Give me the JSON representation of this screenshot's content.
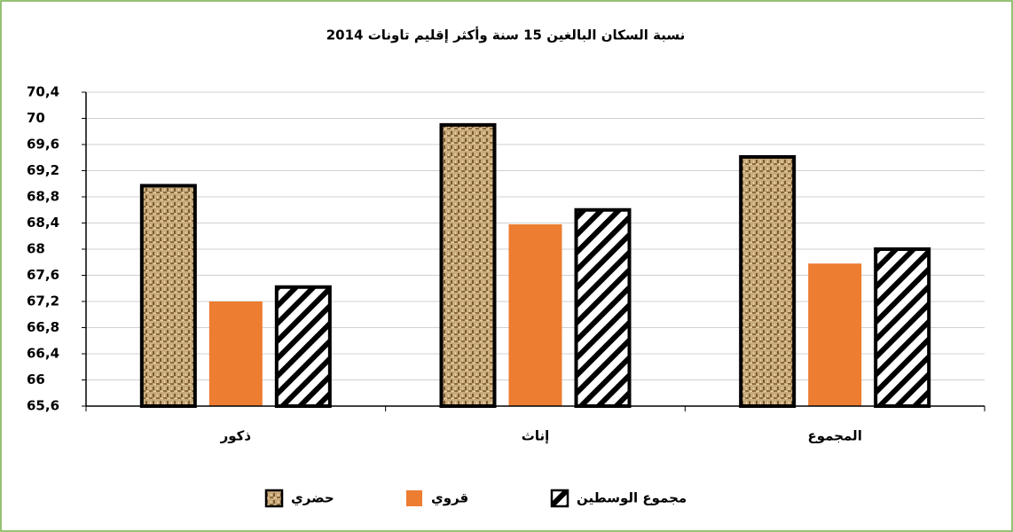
{
  "chart_data": {
    "type": "bar",
    "title": "نسبة السكان البالغين 15 سنة وأكثر إقليم تاونات 2014",
    "categories": [
      "ذكور",
      "إناث",
      "المجموع"
    ],
    "series": [
      {
        "name": "حضري",
        "color": "#c9ab7c",
        "pattern": "texture",
        "values": [
          68.97,
          69.9,
          69.41
        ]
      },
      {
        "name": "قروي",
        "color": "#ed7d31",
        "pattern": "solid",
        "values": [
          67.2,
          68.38,
          67.78
        ]
      },
      {
        "name": "مجموع الوسطين",
        "color": "#000000",
        "pattern": "hatch",
        "values": [
          67.42,
          68.6,
          68.0
        ]
      }
    ],
    "ylim": [
      65.6,
      70.4
    ],
    "yticks": [
      {
        "value": 65.6,
        "label": "65,6"
      },
      66,
      {
        "value": 66.4,
        "label": "66,4"
      },
      {
        "value": 66.8,
        "label": "66,8"
      },
      {
        "value": 67.2,
        "label": "67,2"
      },
      {
        "value": 67.6,
        "label": "67,6"
      },
      68,
      {
        "value": 68.4,
        "label": "68,4"
      },
      {
        "value": 68.8,
        "label": "68,8"
      },
      {
        "value": 69.2,
        "label": "69,2"
      },
      {
        "value": 69.6,
        "label": "69,6"
      },
      70,
      {
        "value": 70.4,
        "label": "70,4"
      }
    ],
    "grid": true,
    "legend": "bottom"
  }
}
